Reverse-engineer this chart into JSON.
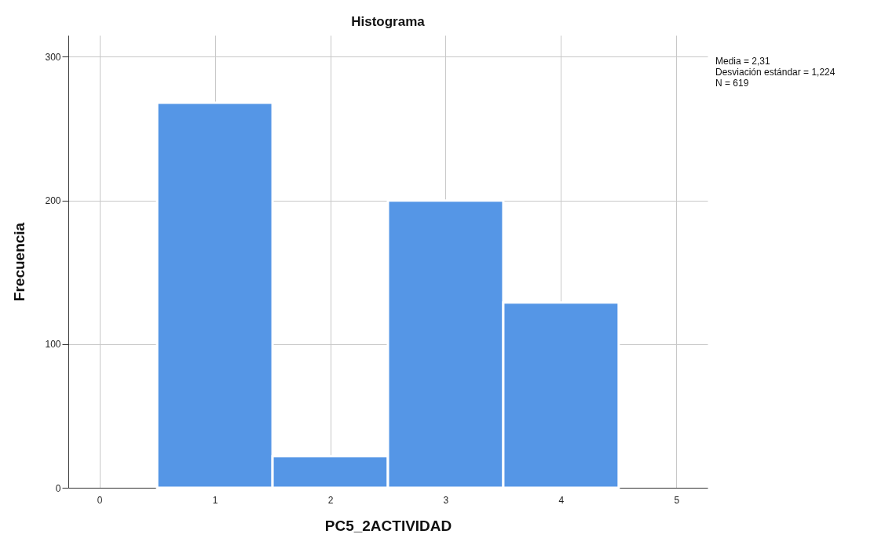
{
  "chart_data": {
    "type": "histogram",
    "title": "Histograma",
    "xlabel": "PC5_2ACTIVIDAD",
    "ylabel": "Frecuencia",
    "bins": [
      0.5,
      1.5,
      2.5,
      3.5,
      4.5
    ],
    "values": [
      268,
      22,
      200,
      129
    ],
    "color": "#5596e6",
    "xlim": [
      -0.27,
      5.27
    ],
    "xticks": [
      0,
      1,
      2,
      3,
      4,
      5
    ],
    "ylim": [
      0,
      315
    ],
    "yticks": [
      0,
      100,
      200,
      300
    ],
    "grid": true,
    "annotations": [
      "Media = 2,31",
      "Desviación estándar = 1,224",
      "N = 619"
    ]
  }
}
